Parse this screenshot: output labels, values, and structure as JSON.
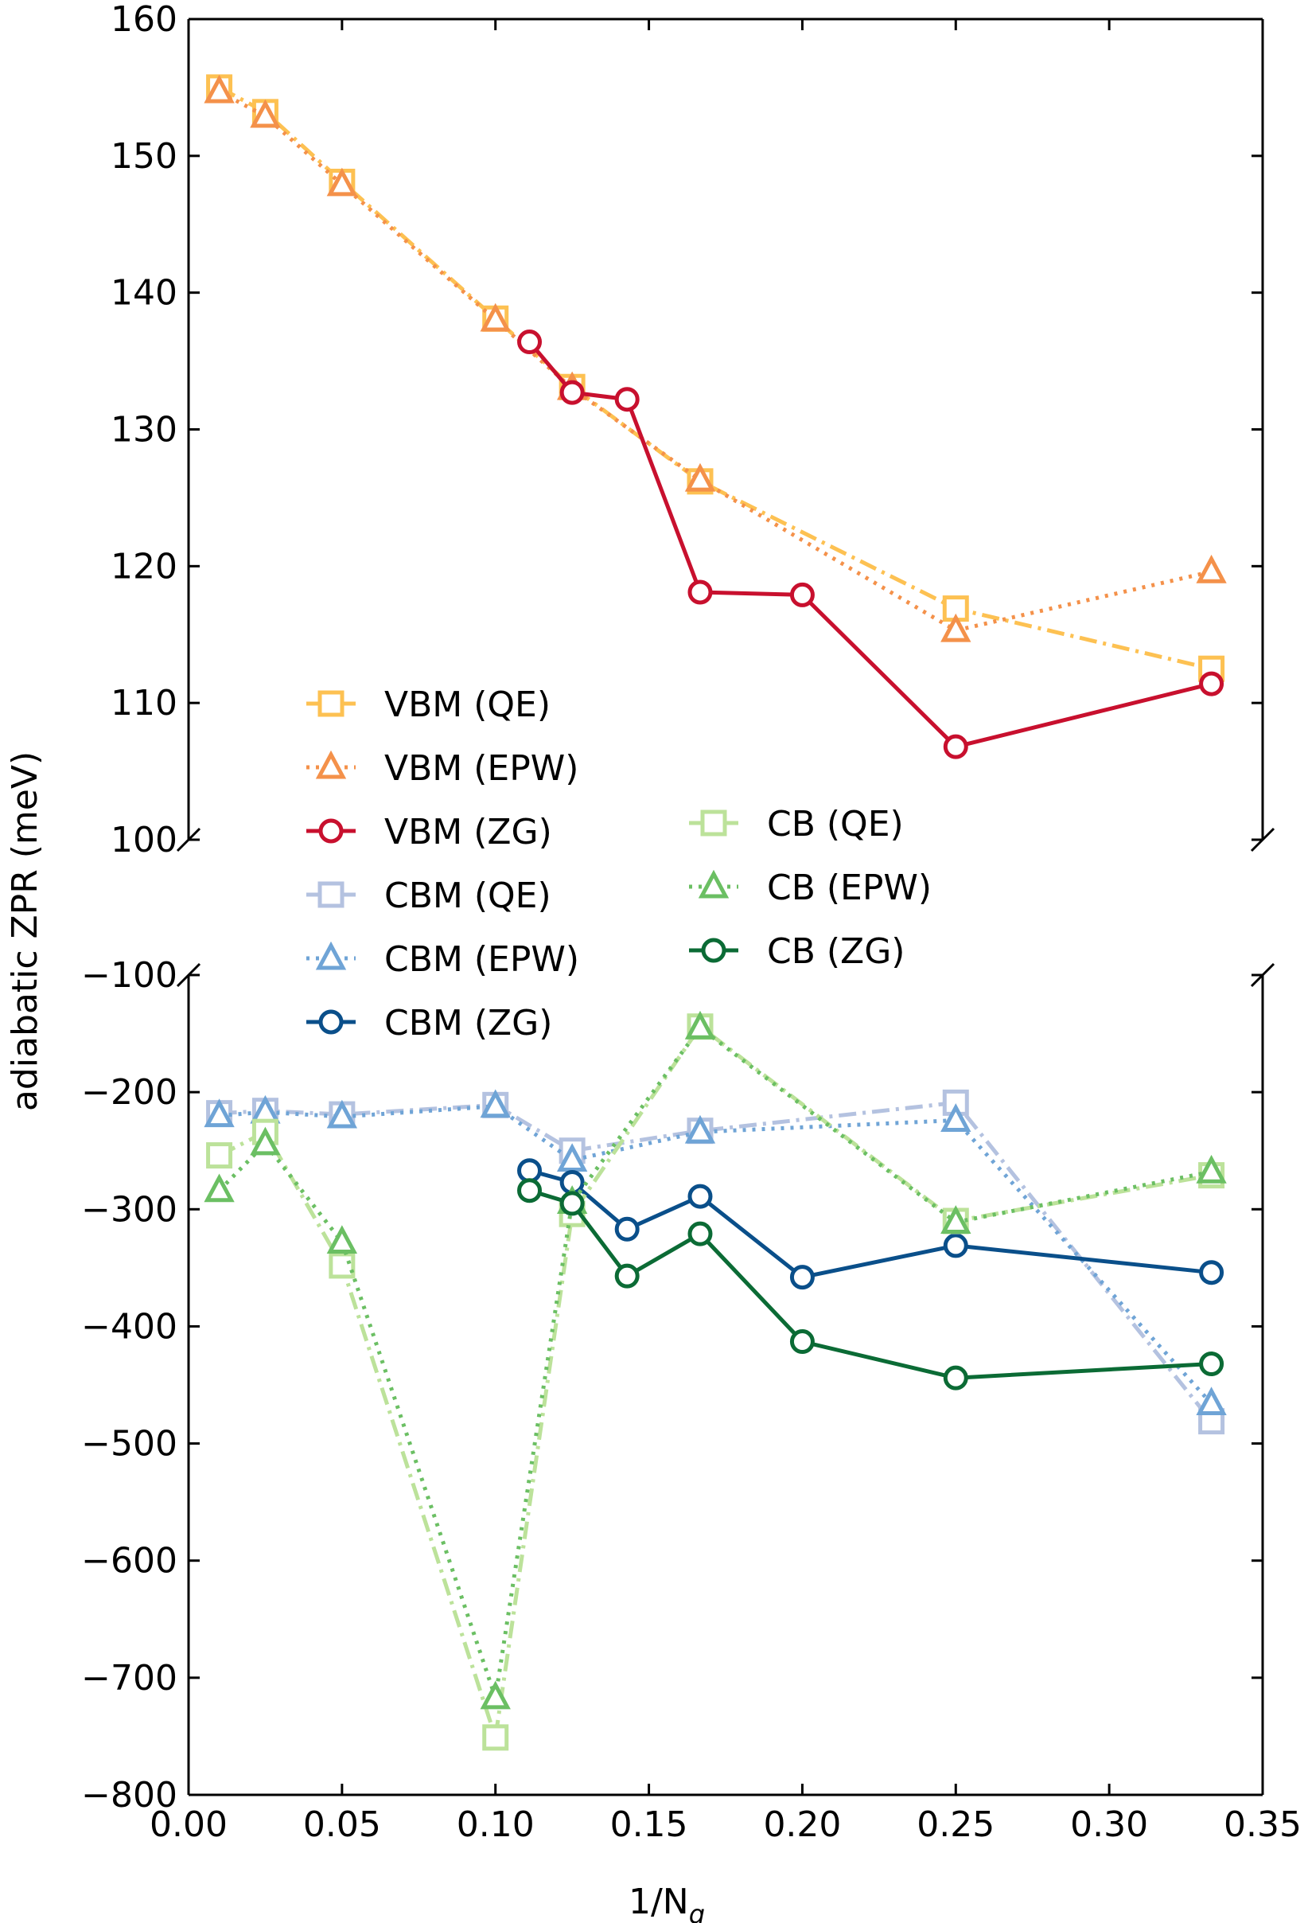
{
  "chart_data": {
    "type": "line",
    "title": "",
    "xlabel": "1/N",
    "xlabel_sub": "q",
    "ylabel": "adiabatic ZPR (meV)",
    "xlim": [
      0.0,
      0.35
    ],
    "x_ticks": [
      0.0,
      0.05,
      0.1,
      0.15,
      0.2,
      0.25,
      0.3,
      0.35
    ],
    "x_tick_labels": [
      "0.00",
      "0.05",
      "0.10",
      "0.15",
      "0.20",
      "0.25",
      "0.30",
      "0.35"
    ],
    "panels": [
      {
        "name": "upper",
        "ylim": [
          100,
          160
        ],
        "y_ticks": [
          100,
          110,
          120,
          130,
          140,
          150,
          160
        ],
        "y_tick_labels": [
          "100",
          "110",
          "120",
          "130",
          "140",
          "150",
          "160"
        ]
      },
      {
        "name": "lower",
        "ylim": [
          -800,
          -100
        ],
        "y_ticks": [
          -800,
          -700,
          -600,
          -500,
          -400,
          -300,
          -200,
          -100
        ],
        "y_tick_labels": [
          "−800",
          "−700",
          "−600",
          "−500",
          "−400",
          "−300",
          "−200",
          "−100"
        ]
      }
    ],
    "legend_position": "center-left",
    "series": [
      {
        "name": "VBM (QE)",
        "panel": "upper",
        "color": "#FDC152",
        "marker": "square",
        "line": "dashdot",
        "x": [
          0.01,
          0.025,
          0.05,
          0.1,
          0.125,
          0.1667,
          0.25,
          0.3333
        ],
        "y": [
          155.0,
          153.2,
          148.1,
          138.1,
          133.1,
          126.2,
          116.9,
          112.5
        ]
      },
      {
        "name": "VBM (EPW)",
        "panel": "upper",
        "color": "#F4914A",
        "marker": "triangle",
        "line": "dotted",
        "x": [
          0.01,
          0.025,
          0.05,
          0.1,
          0.125,
          0.1667,
          0.25,
          0.3333
        ],
        "y": [
          154.7,
          152.9,
          147.9,
          138.0,
          133.0,
          126.3,
          115.3,
          119.6
        ]
      },
      {
        "name": "VBM (ZG)",
        "panel": "upper",
        "color": "#C8102E",
        "marker": "circle",
        "line": "solid",
        "x": [
          0.1111,
          0.125,
          0.1429,
          0.1667,
          0.2,
          0.25,
          0.3333
        ],
        "y": [
          136.4,
          132.7,
          132.2,
          118.1,
          117.9,
          106.8,
          111.4
        ]
      },
      {
        "name": "CBM (QE)",
        "panel": "lower",
        "color": "#B4C2E0",
        "marker": "square",
        "line": "dashdot",
        "x": [
          0.01,
          0.025,
          0.05,
          0.1,
          0.125,
          0.1667,
          0.25,
          0.3333
        ],
        "y": [
          -218,
          -216,
          -219,
          -211,
          -250,
          -233,
          -209,
          -481
        ]
      },
      {
        "name": "CBM (EPW)",
        "panel": "lower",
        "color": "#6FA4D6",
        "marker": "triangle",
        "line": "dotted",
        "x": [
          0.01,
          0.025,
          0.05,
          0.1,
          0.125,
          0.1667,
          0.25,
          0.3333
        ],
        "y": [
          -220,
          -217,
          -221,
          -212,
          -258,
          -234,
          -224,
          -466
        ]
      },
      {
        "name": "CBM (ZG)",
        "panel": "lower",
        "color": "#0A4F8A",
        "marker": "circle",
        "line": "solid",
        "x": [
          0.1111,
          0.125,
          0.1429,
          0.1667,
          0.2,
          0.25,
          0.3333
        ],
        "y": [
          -267,
          -277,
          -317,
          -289,
          -358,
          -331,
          -354
        ]
      },
      {
        "name": "CB (QE)",
        "panel": "lower",
        "color": "#BCE29A",
        "marker": "square",
        "line": "dashdot",
        "x": [
          0.01,
          0.025,
          0.05,
          0.1,
          0.125,
          0.1667,
          0.25,
          0.3333
        ],
        "y": [
          -254,
          -234,
          -348,
          -751,
          -304,
          -144,
          -310,
          -271
        ]
      },
      {
        "name": "CB (EPW)",
        "panel": "lower",
        "color": "#6BBF63",
        "marker": "triangle",
        "line": "dotted",
        "x": [
          0.01,
          0.025,
          0.05,
          0.1,
          0.125,
          0.1667,
          0.25,
          0.3333
        ],
        "y": [
          -284,
          -244,
          -328,
          -717,
          -294,
          -145,
          -311,
          -268
        ]
      },
      {
        "name": "CB (ZG)",
        "panel": "lower",
        "color": "#0B6B35",
        "marker": "circle",
        "line": "solid",
        "x": [
          0.1111,
          0.125,
          0.1429,
          0.1667,
          0.2,
          0.25,
          0.3333
        ],
        "y": [
          -284,
          -295,
          -357,
          -321,
          -413,
          -444,
          -432
        ]
      }
    ]
  }
}
